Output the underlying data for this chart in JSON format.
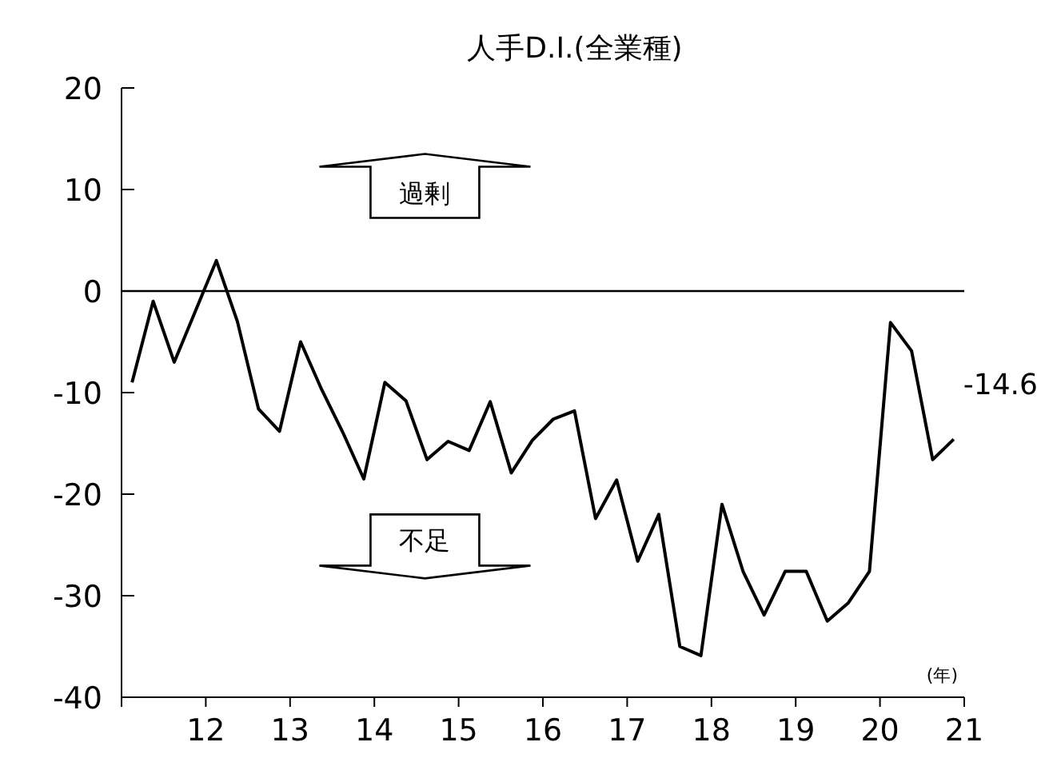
{
  "chart_data": {
    "type": "line",
    "title": "人手D.I.(全業種)",
    "xlabel": "(年)",
    "x": [
      11.125,
      11.375,
      11.625,
      11.875,
      12.125,
      12.375,
      12.625,
      12.875,
      13.125,
      13.375,
      13.625,
      13.875,
      14.125,
      14.375,
      14.625,
      14.875,
      15.125,
      15.375,
      15.625,
      15.875,
      16.125,
      16.375,
      16.625,
      16.875,
      17.125,
      17.375,
      17.625,
      17.875,
      18.125,
      18.375,
      18.625,
      18.875,
      19.125,
      19.375,
      19.625,
      19.875,
      20.125,
      20.375,
      20.625,
      20.875
    ],
    "series": [
      {
        "color": "#000000",
        "values": [
          -9,
          -1,
          -7,
          -2,
          3,
          -3,
          -11.6,
          -13.8,
          -5,
          -9.7,
          -13.9,
          -18.5,
          -9,
          -10.8,
          -16.6,
          -14.8,
          -15.7,
          -10.9,
          -17.9,
          -14.7,
          -12.6,
          -11.8,
          -22.4,
          -18.6,
          -26.6,
          -22,
          -35,
          -35.9,
          -21,
          -27.6,
          -31.9,
          -27.6,
          -27.6,
          -32.5,
          -30.7,
          -27.6,
          -3.1,
          -5.9,
          -16.6,
          -14.6
        ]
      }
    ],
    "xlim": [
      11,
      21
    ],
    "xticks": [
      12,
      13,
      14,
      15,
      16,
      17,
      18,
      19,
      20,
      21
    ],
    "ylim": [
      -40,
      20
    ],
    "yticks": [
      -40,
      -30,
      -20,
      -10,
      0,
      10,
      20
    ],
    "ref_lines": [
      {
        "axis": "y",
        "value": 0,
        "color": "#000000"
      }
    ],
    "annotations": [
      {
        "text": "-14.6",
        "x": 20.875,
        "y": -14.6
      },
      "過剰",
      "不足"
    ],
    "grid": false,
    "marker": "none",
    "line_style": "solid"
  }
}
